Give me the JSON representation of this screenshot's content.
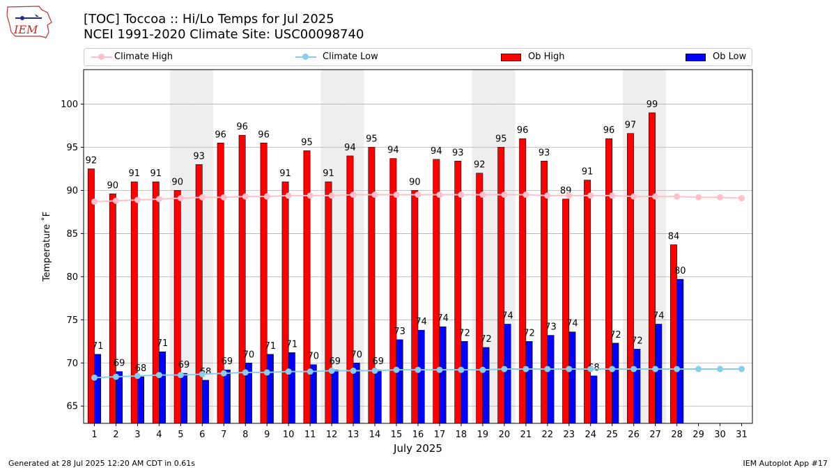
{
  "header": {
    "logo_text": "IEM",
    "title_line1": "[TOC] Toccoa :: Hi/Lo Temps for Jul 2025",
    "title_line2": "NCEI 1991-2020 Climate Site: USC00098740"
  },
  "legend": {
    "climate_high": "Climate High",
    "climate_low": "Climate Low",
    "ob_high": "Ob High",
    "ob_low": "Ob Low"
  },
  "footer": {
    "generated": "Generated at 28 Jul 2025 12:20 AM CDT in 0.61s",
    "app": "IEM Autoplot App #17"
  },
  "chart_data": {
    "type": "bar",
    "xlabel": "July 2025",
    "ylabel": "Temperature ˚F",
    "ylim": [
      63,
      104
    ],
    "yticks": [
      65,
      70,
      75,
      80,
      85,
      90,
      95,
      100
    ],
    "grid": true,
    "legend_position": "top",
    "shaded_days": [
      5,
      6,
      12,
      13,
      19,
      20,
      26,
      27
    ],
    "categories": [
      "1",
      "2",
      "3",
      "4",
      "5",
      "6",
      "7",
      "8",
      "9",
      "10",
      "11",
      "12",
      "13",
      "14",
      "15",
      "16",
      "17",
      "18",
      "19",
      "20",
      "21",
      "22",
      "23",
      "24",
      "25",
      "26",
      "27",
      "28",
      "29",
      "30",
      "31"
    ],
    "series": [
      {
        "name": "Ob High",
        "kind": "bar",
        "color": "#ff0000",
        "values": [
          92.5,
          89.6,
          91.0,
          91.0,
          90.0,
          93.0,
          95.5,
          96.4,
          95.5,
          91.0,
          94.6,
          91.0,
          94.0,
          95.0,
          93.7,
          90.0,
          93.6,
          93.4,
          92.0,
          95.0,
          96.0,
          93.4,
          89.0,
          91.2,
          96.0,
          96.6,
          99.0,
          83.7,
          null,
          null,
          null
        ],
        "labels": [
          "92",
          "90",
          "91",
          "91",
          "90",
          "93",
          "96",
          "96",
          "96",
          "91",
          "95",
          "91",
          "94",
          "95",
          "94",
          "90",
          "94",
          "93",
          "92",
          "95",
          "96",
          "93",
          "89",
          "91",
          "96",
          "97",
          "99",
          "84",
          "",
          "",
          ""
        ]
      },
      {
        "name": "Ob Low",
        "kind": "bar",
        "color": "#0000ff",
        "values": [
          71.0,
          69.0,
          68.4,
          71.3,
          68.8,
          68.0,
          69.2,
          70.0,
          71.0,
          71.2,
          69.8,
          69.2,
          70.0,
          69.2,
          72.7,
          73.8,
          74.2,
          72.5,
          71.8,
          74.5,
          72.5,
          73.2,
          73.6,
          68.5,
          72.3,
          71.6,
          74.5,
          79.7,
          null,
          null,
          null
        ],
        "labels": [
          "71",
          "69",
          "68",
          "71",
          "69",
          "68",
          "69",
          "70",
          "71",
          "71",
          "70",
          "69",
          "70",
          "69",
          "73",
          "74",
          "74",
          "72",
          "72",
          "74",
          "72",
          "73",
          "74",
          "68",
          "72",
          "72",
          "74",
          "80",
          "",
          "",
          ""
        ]
      },
      {
        "name": "Climate High",
        "kind": "line",
        "color": "#ffc0cb",
        "values": [
          88.7,
          88.8,
          88.9,
          89.0,
          89.1,
          89.2,
          89.2,
          89.3,
          89.3,
          89.4,
          89.4,
          89.4,
          89.5,
          89.5,
          89.5,
          89.5,
          89.5,
          89.5,
          89.5,
          89.5,
          89.5,
          89.4,
          89.4,
          89.4,
          89.4,
          89.3,
          89.3,
          89.3,
          89.2,
          89.2,
          89.1
        ]
      },
      {
        "name": "Climate Low",
        "kind": "line",
        "color": "#87ceeb",
        "values": [
          68.3,
          68.4,
          68.5,
          68.6,
          68.6,
          68.7,
          68.8,
          68.9,
          68.9,
          69.0,
          69.0,
          69.1,
          69.1,
          69.1,
          69.2,
          69.2,
          69.2,
          69.2,
          69.2,
          69.3,
          69.3,
          69.3,
          69.3,
          69.3,
          69.3,
          69.3,
          69.3,
          69.3,
          69.3,
          69.3,
          69.3
        ]
      }
    ]
  }
}
